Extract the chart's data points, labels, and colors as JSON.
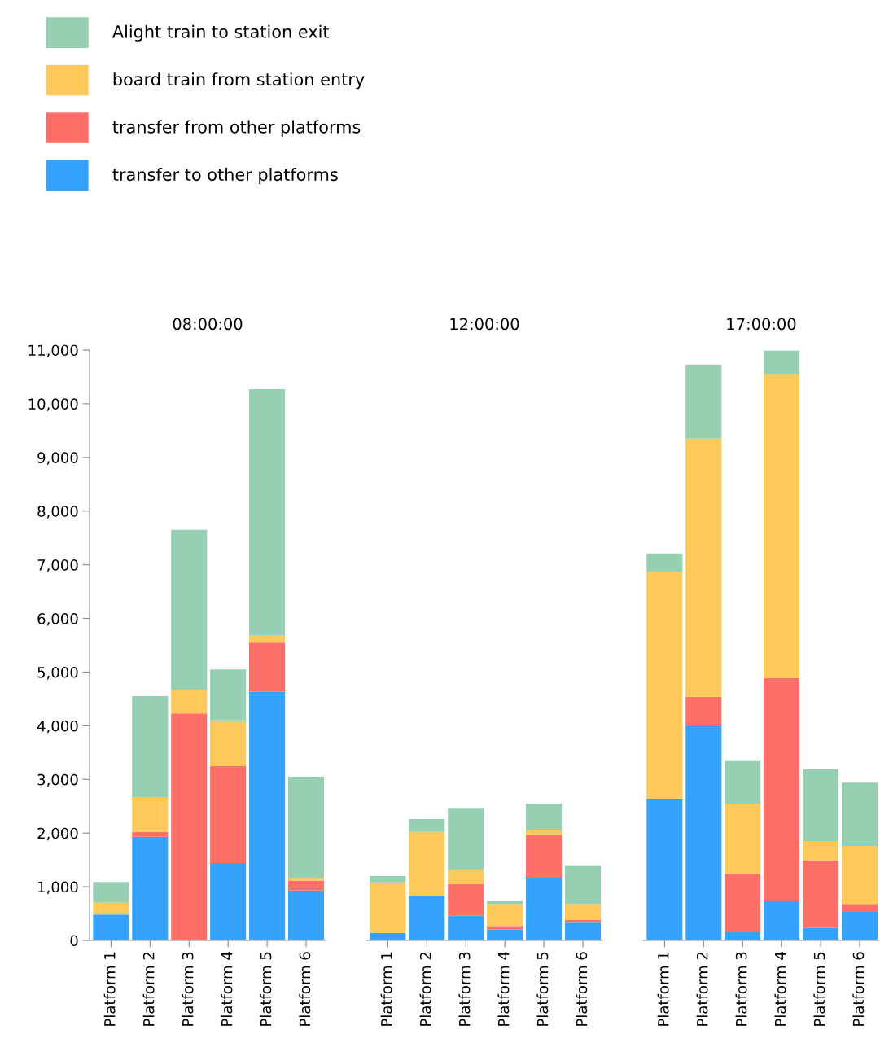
{
  "chart_data": [
    {
      "type": "bar",
      "stacked": true,
      "title": "08:00:00",
      "legend": "top left",
      "categories": [
        "Platform 1",
        "Platform 2",
        "Platform 3",
        "Platform 4",
        "Platform 5",
        "Platform 6"
      ],
      "ylim": [
        0,
        11000
      ],
      "yticks": [
        0,
        {
          "value": 1000,
          "label": "1,000"
        },
        {
          "value": 2000,
          "label": "2,000"
        },
        {
          "value": 3000,
          "label": "3,000"
        },
        {
          "value": 4000,
          "label": "4,000"
        },
        {
          "value": 5000,
          "label": "5,000"
        },
        {
          "value": 6000,
          "label": "6,000"
        },
        {
          "value": 7000,
          "label": "7,000"
        },
        {
          "value": 8000,
          "label": "8,000"
        },
        {
          "value": 9000,
          "label": "9,000"
        },
        {
          "value": 10000,
          "label": "10,000"
        },
        {
          "value": 11000,
          "label": "11,000"
        }
      ],
      "series": [
        {
          "name": "transfer to other platforms",
          "color": "#35a2fd",
          "values": [
            480,
            1930,
            0,
            1440,
            4630,
            930
          ]
        },
        {
          "name": "transfer from other platforms",
          "color": "#fe6f69",
          "values": [
            0,
            90,
            4230,
            1810,
            920,
            180
          ]
        },
        {
          "name": "board train from station entry",
          "color": "#fdc95b",
          "values": [
            220,
            650,
            440,
            850,
            130,
            60
          ]
        },
        {
          "name": "Alight train to station exit",
          "color": "#97cfb2",
          "values": [
            390,
            1880,
            2980,
            950,
            4590,
            1880
          ]
        }
      ]
    },
    {
      "type": "bar",
      "stacked": true,
      "title": "12:00:00",
      "tick_labels": "x",
      "categories": [
        "Platform 1",
        "Platform 2",
        "Platform 3",
        "Platform 4",
        "Platform 5",
        "Platform 6"
      ],
      "ylim": [
        0,
        11000
      ],
      "series": [
        {
          "color": "#35a2fd",
          "values": [
            140,
            830,
            460,
            200,
            1170,
            330
          ]
        },
        {
          "color": "#fe6f69",
          "values": [
            0,
            0,
            590,
            70,
            800,
            50
          ]
        },
        {
          "color": "#fdc95b",
          "values": [
            940,
            1190,
            260,
            410,
            80,
            300
          ]
        },
        {
          "color": "#97cfb2",
          "values": [
            120,
            240,
            1160,
            60,
            500,
            720
          ]
        }
      ]
    },
    {
      "type": "bar",
      "stacked": true,
      "title": "17:00:00",
      "tick_labels": "x",
      "categories": [
        "Platform 1",
        "Platform 2",
        "Platform 3",
        "Platform 4",
        "Platform 5",
        "Platform 6"
      ],
      "ylim": [
        0,
        11000
      ],
      "series": [
        {
          "color": "#35a2fd",
          "values": [
            2640,
            4010,
            150,
            730,
            230,
            530
          ]
        },
        {
          "color": "#fe6f69",
          "values": [
            0,
            530,
            1090,
            4160,
            1260,
            150
          ]
        },
        {
          "color": "#fdc95b",
          "values": [
            4220,
            4810,
            1310,
            5670,
            360,
            1080
          ]
        },
        {
          "color": "#97cfb2",
          "values": [
            350,
            1380,
            790,
            430,
            1340,
            1180
          ]
        }
      ]
    }
  ]
}
